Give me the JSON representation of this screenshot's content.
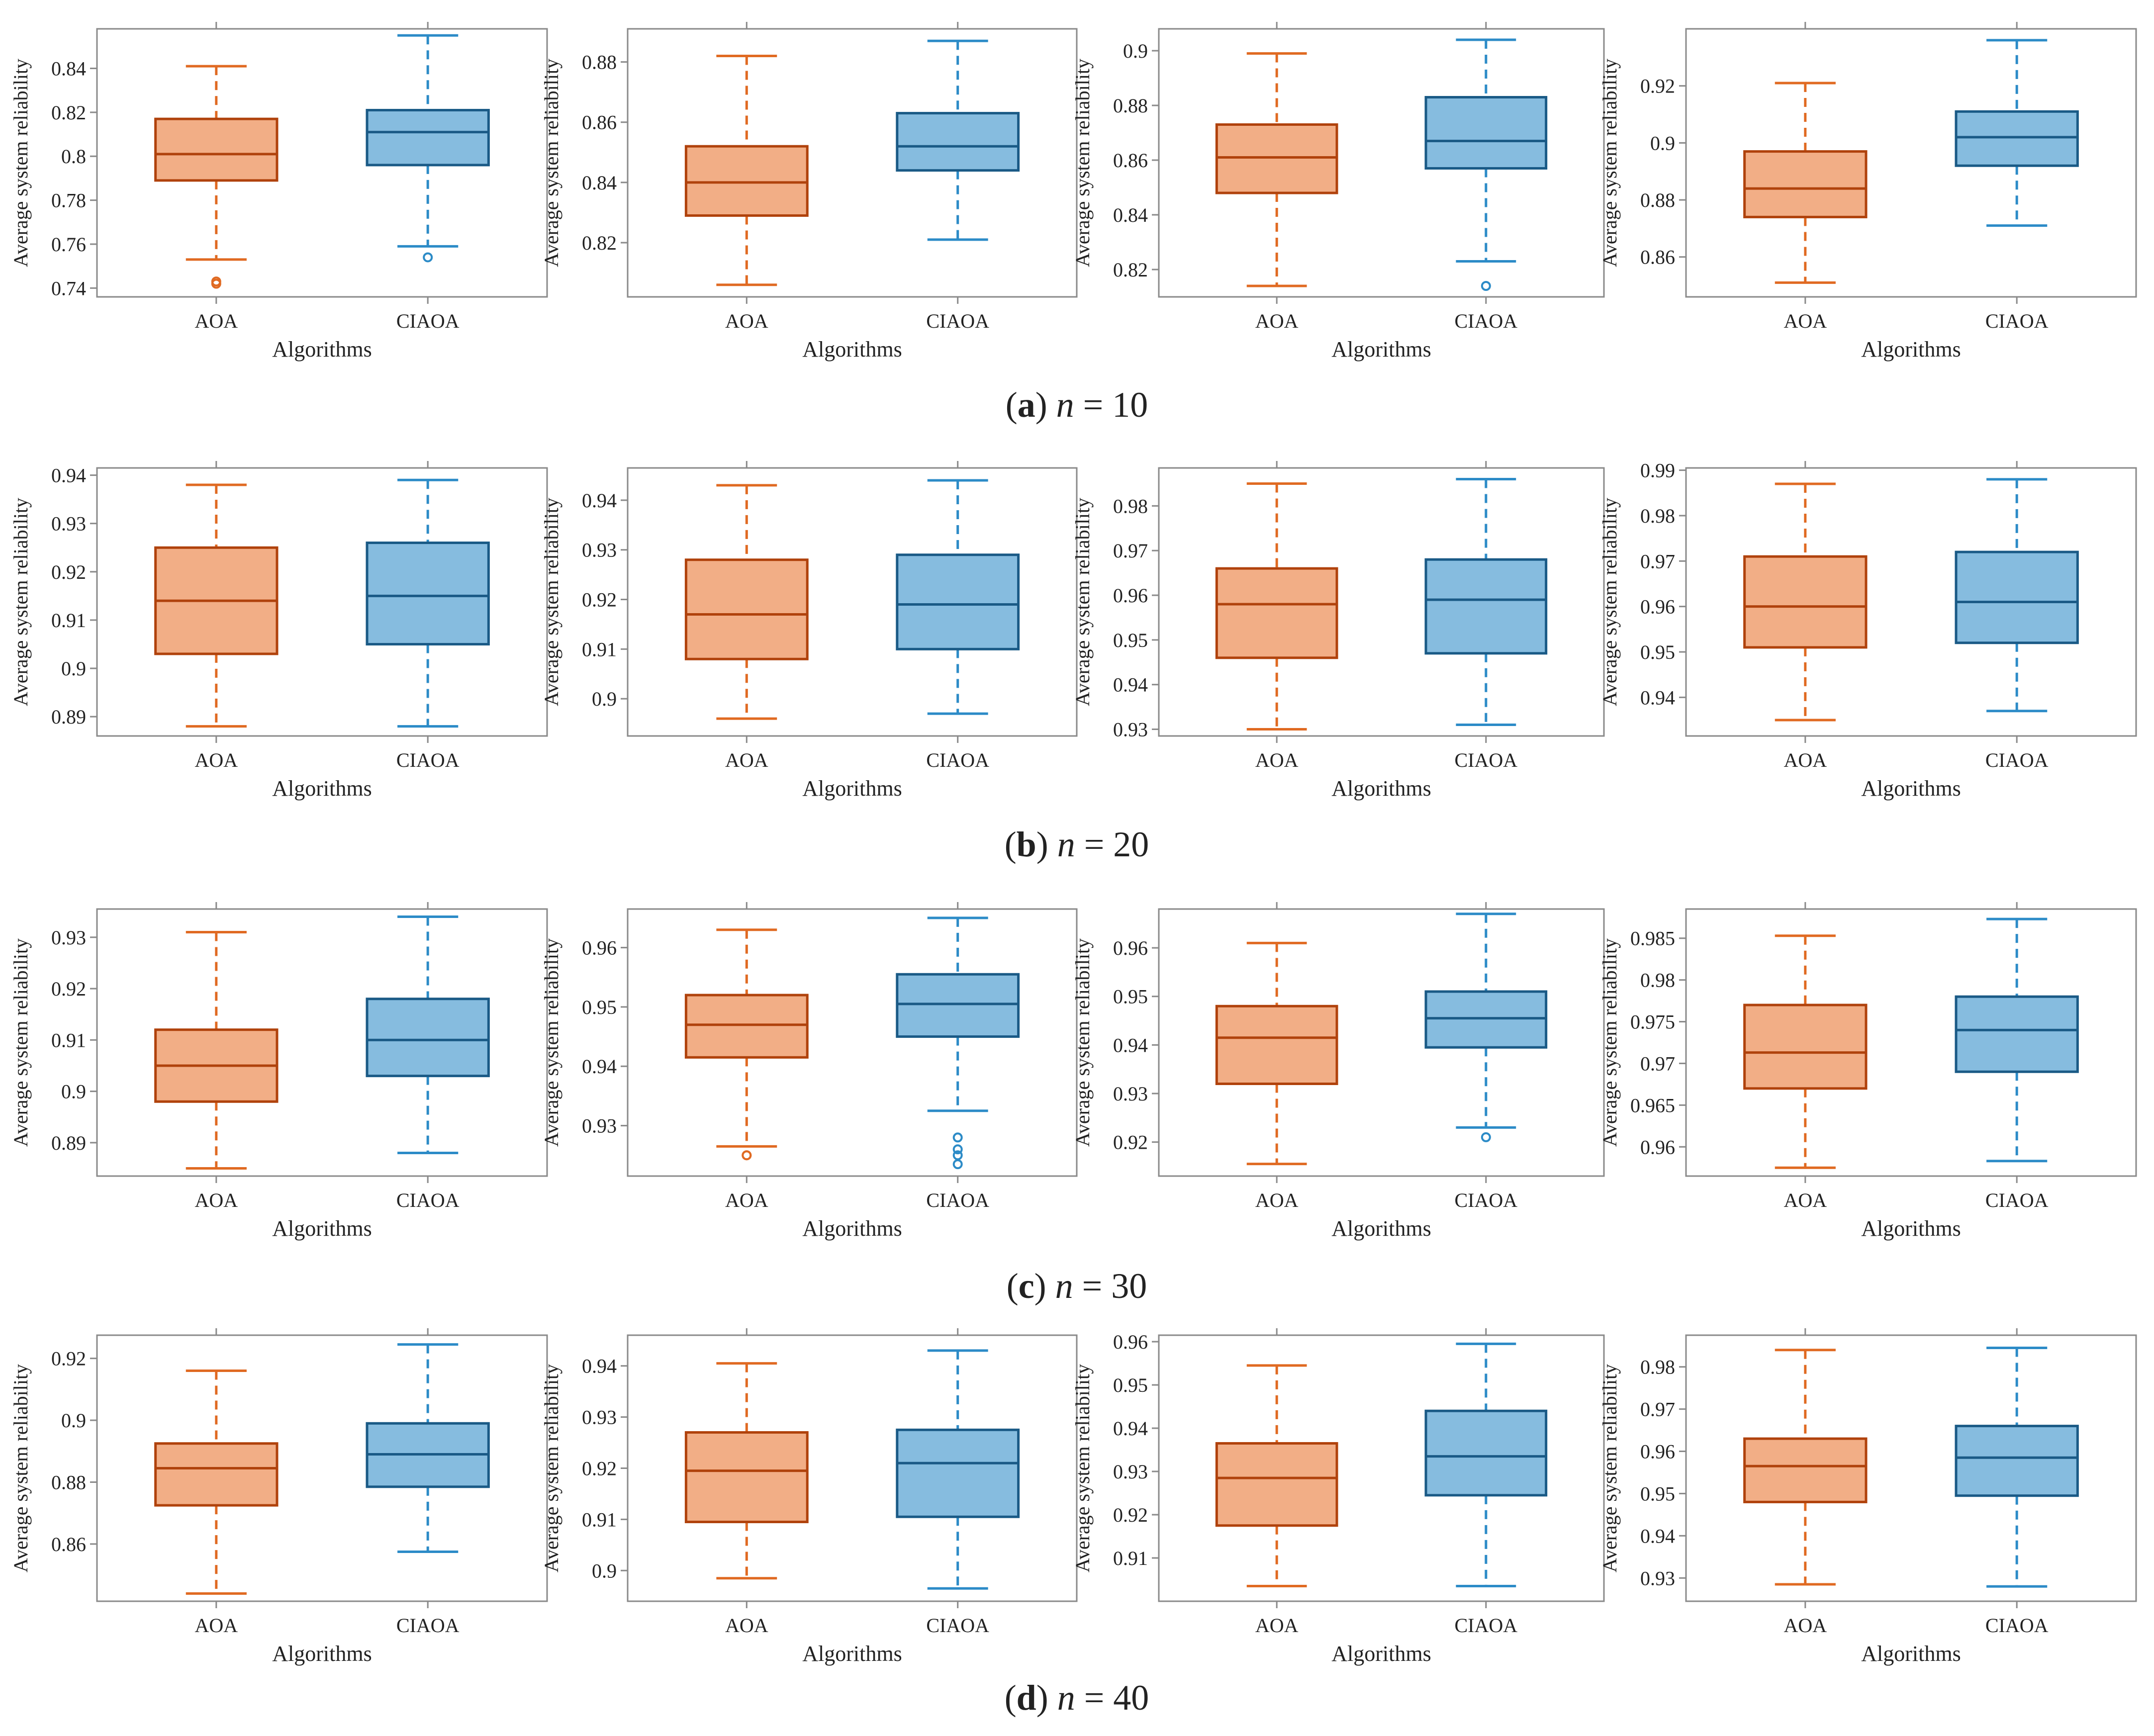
{
  "palette": {
    "AOA": {
      "fill": "#F2AE86",
      "edge": "#B0420C",
      "whisker": "#E06A22"
    },
    "CIAOA": {
      "fill": "#86BCDF",
      "edge": "#1A5A86",
      "whisker": "#2C8BC7"
    }
  },
  "captions": [
    {
      "label": "a",
      "var": "n",
      "value": "= 10"
    },
    {
      "label": "b",
      "var": "n",
      "value": "= 20"
    },
    {
      "label": "c",
      "var": "n",
      "value": "= 30"
    },
    {
      "label": "d",
      "var": "n",
      "value": "= 40"
    }
  ],
  "chart_data": [
    {
      "type": "box",
      "xlabel": "Algorithms",
      "ylabel": "Average system reliability",
      "categories": [
        "AOA",
        "CIAOA"
      ],
      "ylim": [
        0.736,
        0.858
      ],
      "yticks": [
        0.74,
        0.76,
        0.78,
        0.8,
        0.82,
        0.84
      ],
      "ytick_labels": [
        "0.74",
        "0.76",
        "0.78",
        "0.8",
        "0.82",
        "0.84"
      ],
      "series": [
        {
          "name": "AOA",
          "whislo": 0.753,
          "q1": 0.789,
          "med": 0.801,
          "q3": 0.817,
          "whishi": 0.841,
          "fliers": [
            0.742,
            0.743
          ]
        },
        {
          "name": "CIAOA",
          "whislo": 0.759,
          "q1": 0.796,
          "med": 0.811,
          "q3": 0.821,
          "whishi": 0.855,
          "fliers": [
            0.754
          ]
        }
      ]
    },
    {
      "type": "box",
      "xlabel": "Algorithms",
      "ylabel": "Average system reliability",
      "categories": [
        "AOA",
        "CIAOA"
      ],
      "ylim": [
        0.802,
        0.891
      ],
      "yticks": [
        0.82,
        0.84,
        0.86,
        0.88
      ],
      "ytick_labels": [
        "0.82",
        "0.84",
        "0.86",
        "0.88"
      ],
      "series": [
        {
          "name": "AOA",
          "whislo": 0.806,
          "q1": 0.829,
          "med": 0.84,
          "q3": 0.852,
          "whishi": 0.882,
          "fliers": []
        },
        {
          "name": "CIAOA",
          "whislo": 0.821,
          "q1": 0.844,
          "med": 0.852,
          "q3": 0.863,
          "whishi": 0.887,
          "fliers": []
        }
      ]
    },
    {
      "type": "box",
      "xlabel": "Algorithms",
      "ylabel": "Average system reliability",
      "categories": [
        "AOA",
        "CIAOA"
      ],
      "ylim": [
        0.81,
        0.908
      ],
      "yticks": [
        0.82,
        0.84,
        0.86,
        0.88,
        0.9
      ],
      "ytick_labels": [
        "0.82",
        "0.84",
        "0.86",
        "0.88",
        "0.9"
      ],
      "series": [
        {
          "name": "AOA",
          "whislo": 0.814,
          "q1": 0.848,
          "med": 0.861,
          "q3": 0.873,
          "whishi": 0.899,
          "fliers": []
        },
        {
          "name": "CIAOA",
          "whislo": 0.823,
          "q1": 0.857,
          "med": 0.867,
          "q3": 0.883,
          "whishi": 0.904,
          "fliers": [
            0.814
          ]
        }
      ]
    },
    {
      "type": "box",
      "xlabel": "Algorithms",
      "ylabel": "Average system reliability",
      "categories": [
        "AOA",
        "CIAOA"
      ],
      "ylim": [
        0.846,
        0.94
      ],
      "yticks": [
        0.86,
        0.88,
        0.9,
        0.92
      ],
      "ytick_labels": [
        "0.86",
        "0.88",
        "0.9",
        "0.92"
      ],
      "series": [
        {
          "name": "AOA",
          "whislo": 0.851,
          "q1": 0.874,
          "med": 0.884,
          "q3": 0.897,
          "whishi": 0.921,
          "fliers": []
        },
        {
          "name": "CIAOA",
          "whislo": 0.871,
          "q1": 0.892,
          "med": 0.902,
          "q3": 0.911,
          "whishi": 0.936,
          "fliers": []
        }
      ]
    },
    {
      "type": "box",
      "xlabel": "Algorithms",
      "ylabel": "Average system reliability",
      "categories": [
        "AOA",
        "CIAOA"
      ],
      "ylim": [
        0.886,
        0.9415
      ],
      "yticks": [
        0.89,
        0.9,
        0.91,
        0.92,
        0.93,
        0.94
      ],
      "ytick_labels": [
        "0.89",
        "0.9",
        "0.91",
        "0.92",
        "0.93",
        "0.94"
      ],
      "series": [
        {
          "name": "AOA",
          "whislo": 0.888,
          "q1": 0.903,
          "med": 0.914,
          "q3": 0.925,
          "whishi": 0.938,
          "fliers": []
        },
        {
          "name": "CIAOA",
          "whislo": 0.888,
          "q1": 0.905,
          "med": 0.915,
          "q3": 0.926,
          "whishi": 0.939,
          "fliers": []
        }
      ]
    },
    {
      "type": "box",
      "xlabel": "Algorithms",
      "ylabel": "Average system reliability",
      "categories": [
        "AOA",
        "CIAOA"
      ],
      "ylim": [
        0.8925,
        0.9465
      ],
      "yticks": [
        0.9,
        0.91,
        0.92,
        0.93,
        0.94
      ],
      "ytick_labels": [
        "0.9",
        "0.91",
        "0.92",
        "0.93",
        "0.94"
      ],
      "series": [
        {
          "name": "AOA",
          "whislo": 0.896,
          "q1": 0.908,
          "med": 0.917,
          "q3": 0.928,
          "whishi": 0.943,
          "fliers": []
        },
        {
          "name": "CIAOA",
          "whislo": 0.897,
          "q1": 0.91,
          "med": 0.919,
          "q3": 0.929,
          "whishi": 0.944,
          "fliers": []
        }
      ]
    },
    {
      "type": "box",
      "xlabel": "Algorithms",
      "ylabel": "Average system reliability",
      "categories": [
        "AOA",
        "CIAOA"
      ],
      "ylim": [
        0.9285,
        0.9885
      ],
      "yticks": [
        0.93,
        0.94,
        0.95,
        0.96,
        0.97,
        0.98
      ],
      "ytick_labels": [
        "0.93",
        "0.94",
        "0.95",
        "0.96",
        "0.97",
        "0.98"
      ],
      "series": [
        {
          "name": "AOA",
          "whislo": 0.93,
          "q1": 0.946,
          "med": 0.958,
          "q3": 0.966,
          "whishi": 0.985,
          "fliers": []
        },
        {
          "name": "CIAOA",
          "whislo": 0.931,
          "q1": 0.947,
          "med": 0.959,
          "q3": 0.968,
          "whishi": 0.986,
          "fliers": []
        }
      ]
    },
    {
      "type": "box",
      "xlabel": "Algorithms",
      "ylabel": "Average system reliability",
      "categories": [
        "AOA",
        "CIAOA"
      ],
      "ylim": [
        0.9315,
        0.9905
      ],
      "yticks": [
        0.94,
        0.95,
        0.96,
        0.97,
        0.98,
        0.99
      ],
      "ytick_labels": [
        "0.94",
        "0.95",
        "0.96",
        "0.97",
        "0.98",
        "0.99"
      ],
      "series": [
        {
          "name": "AOA",
          "whislo": 0.935,
          "q1": 0.951,
          "med": 0.96,
          "q3": 0.971,
          "whishi": 0.987,
          "fliers": []
        },
        {
          "name": "CIAOA",
          "whislo": 0.937,
          "q1": 0.952,
          "med": 0.961,
          "q3": 0.972,
          "whishi": 0.988,
          "fliers": []
        }
      ]
    },
    {
      "type": "box",
      "xlabel": "Algorithms",
      "ylabel": "Average system reliability",
      "categories": [
        "AOA",
        "CIAOA"
      ],
      "ylim": [
        0.8835,
        0.9355
      ],
      "yticks": [
        0.89,
        0.9,
        0.91,
        0.92,
        0.93
      ],
      "ytick_labels": [
        "0.89",
        "0.9",
        "0.91",
        "0.92",
        "0.93"
      ],
      "series": [
        {
          "name": "AOA",
          "whislo": 0.885,
          "q1": 0.898,
          "med": 0.905,
          "q3": 0.912,
          "whishi": 0.931,
          "fliers": []
        },
        {
          "name": "CIAOA",
          "whislo": 0.888,
          "q1": 0.903,
          "med": 0.91,
          "q3": 0.918,
          "whishi": 0.934,
          "fliers": []
        }
      ]
    },
    {
      "type": "box",
      "xlabel": "Algorithms",
      "ylabel": "Average system reliability",
      "categories": [
        "AOA",
        "CIAOA"
      ],
      "ylim": [
        0.9215,
        0.9665
      ],
      "yticks": [
        0.93,
        0.94,
        0.95,
        0.96
      ],
      "ytick_labels": [
        "0.93",
        "0.94",
        "0.95",
        "0.96"
      ],
      "series": [
        {
          "name": "AOA",
          "whislo": 0.9265,
          "q1": 0.9415,
          "med": 0.947,
          "q3": 0.952,
          "whishi": 0.963,
          "fliers": [
            0.925,
            0.925
          ]
        },
        {
          "name": "CIAOA",
          "whislo": 0.9325,
          "q1": 0.945,
          "med": 0.9505,
          "q3": 0.9555,
          "whishi": 0.965,
          "fliers": [
            0.928,
            0.926,
            0.925,
            0.9235
          ]
        }
      ]
    },
    {
      "type": "box",
      "xlabel": "Algorithms",
      "ylabel": "Average system reliability",
      "categories": [
        "AOA",
        "CIAOA"
      ],
      "ylim": [
        0.913,
        0.968
      ],
      "yticks": [
        0.92,
        0.93,
        0.94,
        0.95,
        0.96
      ],
      "ytick_labels": [
        "0.92",
        "0.93",
        "0.94",
        "0.95",
        "0.96"
      ],
      "series": [
        {
          "name": "AOA",
          "whislo": 0.9155,
          "q1": 0.932,
          "med": 0.9415,
          "q3": 0.948,
          "whishi": 0.961,
          "fliers": []
        },
        {
          "name": "CIAOA",
          "whislo": 0.923,
          "q1": 0.9395,
          "med": 0.9455,
          "q3": 0.951,
          "whishi": 0.967,
          "fliers": [
            0.921
          ]
        }
      ]
    },
    {
      "type": "box",
      "xlabel": "Algorithms",
      "ylabel": "Average system reliability",
      "categories": [
        "AOA",
        "CIAOA"
      ],
      "ylim": [
        0.9565,
        0.9885
      ],
      "yticks": [
        0.96,
        0.965,
        0.97,
        0.975,
        0.98,
        0.985
      ],
      "ytick_labels": [
        "0.96",
        "0.965",
        "0.97",
        "0.975",
        "0.98",
        "0.985"
      ],
      "series": [
        {
          "name": "AOA",
          "whislo": 0.9575,
          "q1": 0.967,
          "med": 0.9713,
          "q3": 0.977,
          "whishi": 0.9853,
          "fliers": []
        },
        {
          "name": "CIAOA",
          "whislo": 0.9583,
          "q1": 0.969,
          "med": 0.974,
          "q3": 0.978,
          "whishi": 0.9873,
          "fliers": []
        }
      ]
    },
    {
      "type": "box",
      "xlabel": "Algorithms",
      "ylabel": "Average system reliability",
      "categories": [
        "AOA",
        "CIAOA"
      ],
      "ylim": [
        0.8415,
        0.9275
      ],
      "yticks": [
        0.86,
        0.88,
        0.9,
        0.92
      ],
      "ytick_labels": [
        "0.86",
        "0.88",
        "0.9",
        "0.92"
      ],
      "series": [
        {
          "name": "AOA",
          "whislo": 0.844,
          "q1": 0.8725,
          "med": 0.8845,
          "q3": 0.8925,
          "whishi": 0.916,
          "fliers": []
        },
        {
          "name": "CIAOA",
          "whislo": 0.8575,
          "q1": 0.8785,
          "med": 0.889,
          "q3": 0.899,
          "whishi": 0.9245,
          "fliers": []
        }
      ]
    },
    {
      "type": "box",
      "xlabel": "Algorithms",
      "ylabel": "Average system reliability",
      "categories": [
        "AOA",
        "CIAOA"
      ],
      "ylim": [
        0.894,
        0.946
      ],
      "yticks": [
        0.9,
        0.91,
        0.92,
        0.93,
        0.94
      ],
      "ytick_labels": [
        "0.9",
        "0.91",
        "0.92",
        "0.93",
        "0.94"
      ],
      "series": [
        {
          "name": "AOA",
          "whislo": 0.8985,
          "q1": 0.9095,
          "med": 0.9195,
          "q3": 0.927,
          "whishi": 0.9405,
          "fliers": []
        },
        {
          "name": "CIAOA",
          "whislo": 0.8965,
          "q1": 0.9105,
          "med": 0.921,
          "q3": 0.9275,
          "whishi": 0.943,
          "fliers": []
        }
      ]
    },
    {
      "type": "box",
      "xlabel": "Algorithms",
      "ylabel": "Average system reliability",
      "categories": [
        "AOA",
        "CIAOA"
      ],
      "ylim": [
        0.9,
        0.9615
      ],
      "yticks": [
        0.91,
        0.92,
        0.93,
        0.94,
        0.95,
        0.96
      ],
      "ytick_labels": [
        "0.91",
        "0.92",
        "0.93",
        "0.94",
        "0.95",
        "0.96"
      ],
      "series": [
        {
          "name": "AOA",
          "whislo": 0.9035,
          "q1": 0.9175,
          "med": 0.9285,
          "q3": 0.9365,
          "whishi": 0.9545,
          "fliers": []
        },
        {
          "name": "CIAOA",
          "whislo": 0.9035,
          "q1": 0.9245,
          "med": 0.9335,
          "q3": 0.944,
          "whishi": 0.9595,
          "fliers": []
        }
      ]
    },
    {
      "type": "box",
      "xlabel": "Algorithms",
      "ylabel": "Average system reliability",
      "categories": [
        "AOA",
        "CIAOA"
      ],
      "ylim": [
        0.9245,
        0.9875
      ],
      "yticks": [
        0.93,
        0.94,
        0.95,
        0.96,
        0.97,
        0.98
      ],
      "ytick_labels": [
        "0.93",
        "0.94",
        "0.95",
        "0.96",
        "0.97",
        "0.98"
      ],
      "series": [
        {
          "name": "AOA",
          "whislo": 0.9285,
          "q1": 0.948,
          "med": 0.9565,
          "q3": 0.963,
          "whishi": 0.984,
          "fliers": []
        },
        {
          "name": "CIAOA",
          "whislo": 0.928,
          "q1": 0.9495,
          "med": 0.9585,
          "q3": 0.966,
          "whishi": 0.9845,
          "fliers": []
        }
      ]
    }
  ]
}
